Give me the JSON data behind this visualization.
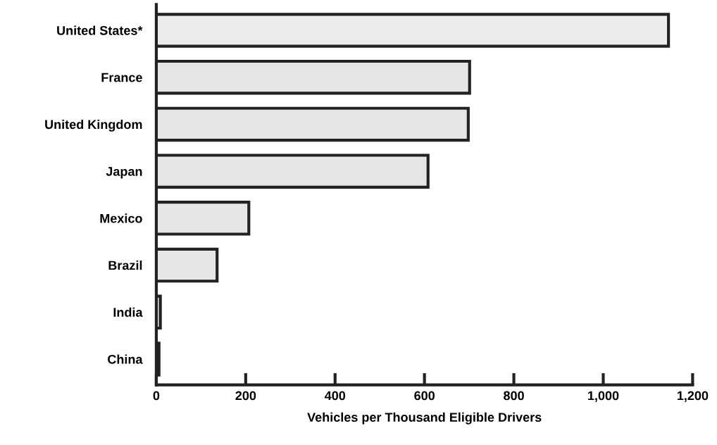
{
  "chart_data": {
    "type": "bar",
    "orientation": "horizontal",
    "xlabel": "Vehicles per Thousand Eligible Drivers",
    "categories": [
      "United States*",
      "France",
      "United Kingdom",
      "Japan",
      "Mexico",
      "Brazil",
      "India",
      "China"
    ],
    "values": [
      1146,
      701,
      698,
      608,
      207,
      136,
      9,
      6
    ],
    "colors": [
      "#ececec",
      "#e6e6e6",
      "#e6e6e6",
      "#e6e6e6",
      "#e6e6e6",
      "#e6e6e6",
      "#e6e6e6",
      "#e6e6e6"
    ],
    "xlim": [
      0,
      1200
    ],
    "xticks": [
      0,
      200,
      400,
      600,
      800,
      {
        "value": 1000,
        "label": "1,000"
      },
      {
        "value": 1200,
        "label": "1,200"
      }
    ],
    "grid": false,
    "legend": false
  }
}
